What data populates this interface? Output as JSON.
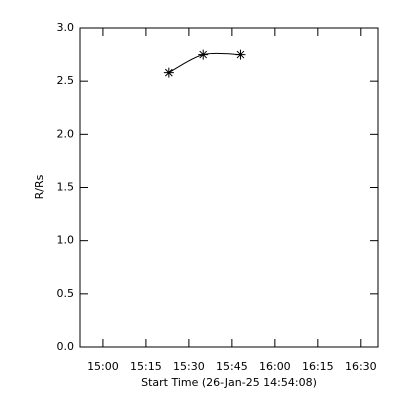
{
  "chart_data": {
    "type": "line",
    "x_label": "Start Time (26-Jan-25 14:54:08)",
    "y_label": "R/Rs",
    "x": [
      923,
      935,
      948
    ],
    "values": [
      2.58,
      2.75,
      2.75
    ],
    "color": "#000000",
    "marker": "asterisk",
    "xlim": [
      892,
      996
    ],
    "xticks": [
      {
        "value": 900,
        "label": "15:00"
      },
      {
        "value": 915,
        "label": "15:15"
      },
      {
        "value": 930,
        "label": "15:30"
      },
      {
        "value": 945,
        "label": "15:45"
      },
      {
        "value": 960,
        "label": "16:00"
      },
      {
        "value": 975,
        "label": "16:15"
      },
      {
        "value": 990,
        "label": "16:30"
      }
    ],
    "ylim": [
      0,
      3
    ],
    "yticks": [
      {
        "value": 0,
        "label": "0.0"
      },
      {
        "value": 0.5,
        "label": "0.5"
      },
      {
        "value": 1,
        "label": "1.0"
      },
      {
        "value": 1.5,
        "label": "1.5"
      },
      {
        "value": 2,
        "label": "2.0"
      },
      {
        "value": 2.5,
        "label": "2.5"
      },
      {
        "value": 3,
        "label": "3.0"
      }
    ]
  }
}
